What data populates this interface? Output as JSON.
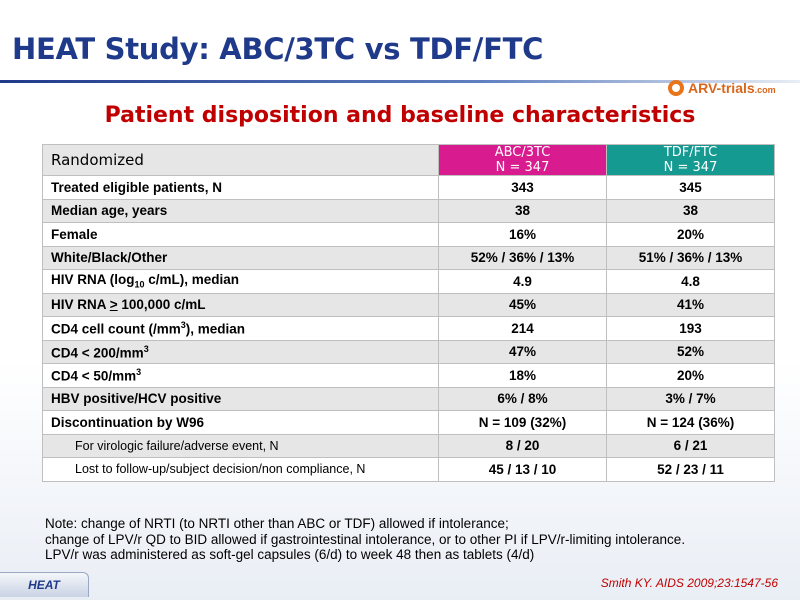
{
  "slide": {
    "title": "HEAT Study: ABC/3TC vs TDF/FTC",
    "subtitle": "Patient disposition and baseline characteristics",
    "logo_text": "ARV-trials",
    "logo_suffix": ".com",
    "footer_tag": "HEAT",
    "citation": "Smith KY. AIDS 2009;23:1547-56"
  },
  "table": {
    "header": {
      "label": "Randomized",
      "col1_name": "ABC/3TC",
      "col1_n": "N = 347",
      "col2_name": "TDF/FTC",
      "col2_n": "N = 347"
    },
    "rows": [
      {
        "label": "Treated eligible patients, N",
        "abc": "343",
        "tdf": "345"
      },
      {
        "label": "Median age, years",
        "abc": "38",
        "tdf": "38"
      },
      {
        "label": "Female",
        "abc": "16%",
        "tdf": "20%"
      },
      {
        "label": "White/Black/Other",
        "abc": "52% / 36% / 13%",
        "tdf": "51% / 36% / 13%"
      },
      {
        "label_a": "HIV RNA (log",
        "label_sub": "10",
        "label_b": " c/mL), median",
        "abc": "4.9",
        "tdf": "4.8"
      },
      {
        "label_a": "HIV RNA ",
        "label_u": ">",
        "label_b": " 100,000 c/mL",
        "abc": "45%",
        "tdf": "41%"
      },
      {
        "label_a": "CD4 cell count (/mm",
        "label_sup": "3",
        "label_b": "), median",
        "abc": "214",
        "tdf": "193"
      },
      {
        "label_a": "CD4 < 200/mm",
        "label_sup": "3",
        "abc": "47%",
        "tdf": "52%"
      },
      {
        "label_a": "CD4 < 50/mm",
        "label_sup": "3",
        "abc": "18%",
        "tdf": "20%"
      },
      {
        "label": "HBV positive/HCV positive",
        "abc": "6% / 8%",
        "tdf": "3% / 7%"
      },
      {
        "label": "Discontinuation by W96",
        "abc": "N = 109 (32%)",
        "tdf": "N = 124 (36%)"
      },
      {
        "label": "For virologic failure/adverse event, N",
        "abc": "8 / 20",
        "tdf": "6 / 21"
      },
      {
        "label": "Lost to follow-up/subject decision/non compliance, N",
        "abc": "45 / 13 / 10",
        "tdf": "52 / 23 / 11"
      }
    ]
  },
  "note": {
    "line1": "Note: change of NRTI (to NRTI other than ABC or TDF) allowed if intolerance;",
    "line2": "change of LPV/r QD to BID allowed if gastrointestinal intolerance, or to other PI if LPV/r-limiting intolerance.",
    "line3": "LPV/r was administered as soft-gel capsules (6/d) to week 48 then as tablets (4/d)"
  },
  "colors": {
    "title": "#1f3a8a",
    "subtitle": "#c00000",
    "abc_header": "#d81b8f",
    "tdf_header": "#159a92",
    "row_alt": "#e6e6e6"
  }
}
